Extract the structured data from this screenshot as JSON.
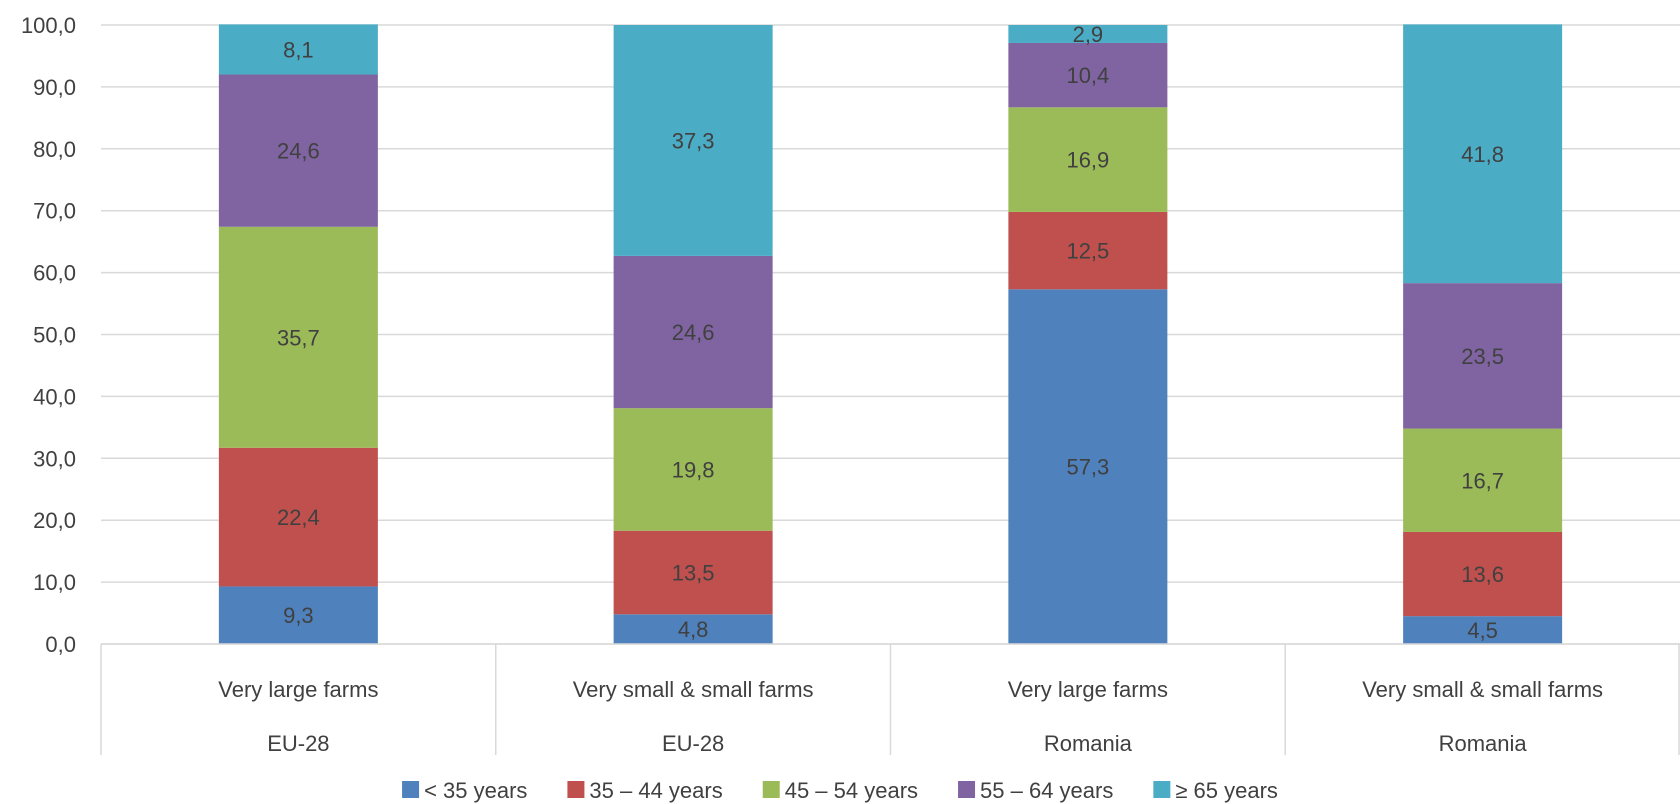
{
  "chart_data": {
    "type": "bar",
    "stacked": true,
    "title": "",
    "xlabel": "",
    "ylabel": "",
    "ylim": [
      0,
      100
    ],
    "yticks": [
      "0,0",
      "10,0",
      "20,0",
      "30,0",
      "40,0",
      "50,0",
      "60,0",
      "70,0",
      "80,0",
      "90,0",
      "100,0"
    ],
    "grid": true,
    "legend_position": "bottom",
    "categories": [
      {
        "label": "Very large farms",
        "group": "EU-28"
      },
      {
        "label": "Very small & small farms",
        "group": "EU-28"
      },
      {
        "label": "Very large farms",
        "group": "Romania"
      },
      {
        "label": "Very small & small farms",
        "group": "Romania"
      }
    ],
    "series": [
      {
        "name": "< 35 years",
        "color": "#4F81BD",
        "values": [
          9.3,
          4.8,
          57.3,
          4.5
        ],
        "labels": [
          "9,3",
          "4,8",
          "57,3",
          "4,5"
        ]
      },
      {
        "name": "35 – 44 years",
        "color": "#C0504D",
        "values": [
          22.4,
          13.5,
          12.5,
          13.6
        ],
        "labels": [
          "22,4",
          "13,5",
          "12,5",
          "13,6"
        ]
      },
      {
        "name": "45 – 54 years",
        "color": "#9BBB59",
        "values": [
          35.7,
          19.8,
          16.9,
          16.7
        ],
        "labels": [
          "35,7",
          "19,8",
          "16,9",
          "16,7"
        ]
      },
      {
        "name": "55 – 64 years",
        "color": "#8064A2",
        "values": [
          24.6,
          24.6,
          10.4,
          23.5
        ],
        "labels": [
          "24,6",
          "24,6",
          "10,4",
          "23,5"
        ]
      },
      {
        "name": "≥ 65 years",
        "color": "#4BACC6",
        "values": [
          8.1,
          37.3,
          2.9,
          41.8
        ],
        "labels": [
          "8,1",
          "37,3",
          "2,9",
          "41,8"
        ]
      }
    ]
  }
}
